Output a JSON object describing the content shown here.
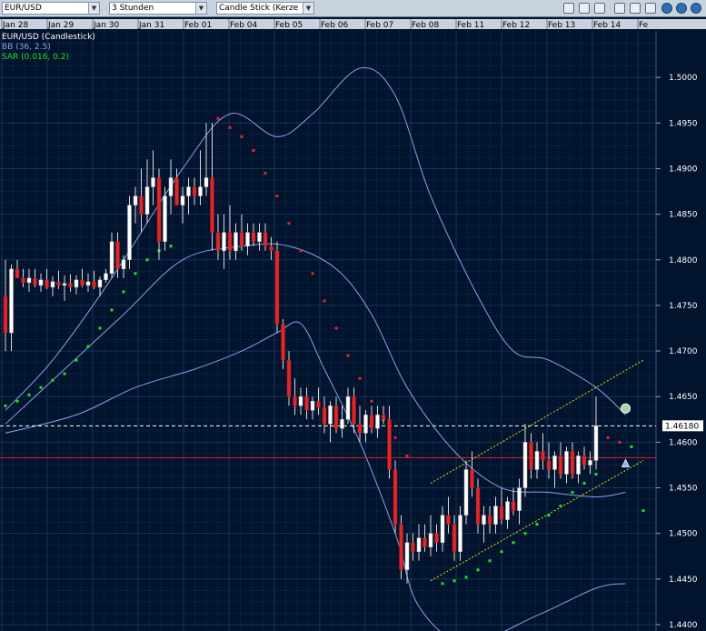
{
  "toolbar": {
    "symbol": "EUR/USD",
    "timeframe": "3 Stunden",
    "chart_type": "Candle Stick (Kerze"
  },
  "legend": {
    "main": "EUR/USD (Candlestick)",
    "bb": "BB (36, 2.5)",
    "sar": "SAR (0.016, 0.2)"
  },
  "colors": {
    "background": "#02132e",
    "grid": "#1a3356",
    "up_candle": "#ffffff",
    "down_candle": "#e0282c",
    "bollinger": "#8aa0e6",
    "sar_up": "#22e022",
    "sar_down": "#e0282c",
    "channel": "#e6e600",
    "support_line": "#d02626",
    "price_line": "#ffffff",
    "accent": "#a5d3a5"
  },
  "chart_data": {
    "type": "candlestick",
    "instrument": "EUR/USD",
    "timeframe": "3 Stunden",
    "x_tick_labels": [
      "Jan 28",
      "Jan 29",
      "Jan 30",
      "Jan 31",
      "Feb 01",
      "Feb 04",
      "Feb 05",
      "Feb 06",
      "Feb 07",
      "Feb 08",
      "Feb 11",
      "Feb 12",
      "Feb 13",
      "Feb 14",
      "Fe"
    ],
    "y_tick_labels": [
      "1.4400",
      "1.4450",
      "1.4500",
      "1.4550",
      "1.4600",
      "1.4650",
      "1.4700",
      "1.4750",
      "1.4800",
      "1.4850",
      "1.4900",
      "1.4950",
      "1.5000"
    ],
    "ylim": [
      1.4393,
      1.5051
    ],
    "grid": true,
    "current_price_label": "1.46180",
    "current_price": 1.4618,
    "support_level": 1.4583,
    "indicators": {
      "bollinger_bands": {
        "label": "BB (36, 2.5)",
        "period": 36,
        "deviation": 2.5
      },
      "parabolic_sar": {
        "label": "SAR (0.016, 0.2)",
        "step": 0.016,
        "max": 0.2
      }
    },
    "candles": [
      [
        1.476,
        1.48,
        1.47,
        1.472
      ],
      [
        1.472,
        1.4795,
        1.47,
        1.479
      ],
      [
        1.479,
        1.48,
        1.478,
        1.478
      ],
      [
        1.478,
        1.479,
        1.477,
        1.4775
      ],
      [
        1.4775,
        1.479,
        1.4765,
        1.478
      ],
      [
        1.478,
        1.479,
        1.477,
        1.4772
      ],
      [
        1.4772,
        1.4785,
        1.4765,
        1.4778
      ],
      [
        1.4778,
        1.479,
        1.4768,
        1.477
      ],
      [
        1.477,
        1.4782,
        1.476,
        1.4776
      ],
      [
        1.4776,
        1.4788,
        1.4768,
        1.4772
      ],
      [
        1.4772,
        1.4783,
        1.4755,
        1.4774
      ],
      [
        1.4774,
        1.4784,
        1.4765,
        1.477
      ],
      [
        1.477,
        1.4783,
        1.4762,
        1.4778
      ],
      [
        1.4778,
        1.479,
        1.477,
        1.4772
      ],
      [
        1.4772,
        1.4785,
        1.4765,
        1.4776
      ],
      [
        1.4776,
        1.4788,
        1.4768,
        1.477
      ],
      [
        1.477,
        1.4782,
        1.476,
        1.4778
      ],
      [
        1.4778,
        1.479,
        1.4775,
        1.4785
      ],
      [
        1.4785,
        1.483,
        1.478,
        1.482
      ],
      [
        1.482,
        1.483,
        1.478,
        1.479
      ],
      [
        1.479,
        1.4805,
        1.478,
        1.48
      ],
      [
        1.48,
        1.487,
        1.479,
        1.486
      ],
      [
        1.486,
        1.488,
        1.484,
        1.487
      ],
      [
        1.487,
        1.49,
        1.483,
        1.485
      ],
      [
        1.485,
        1.491,
        1.484,
        1.488
      ],
      [
        1.488,
        1.492,
        1.486,
        1.489
      ],
      [
        1.489,
        1.49,
        1.48,
        1.482
      ],
      [
        1.482,
        1.488,
        1.481,
        1.487
      ],
      [
        1.487,
        1.491,
        1.485,
        1.489
      ],
      [
        1.489,
        1.49,
        1.486,
        1.486
      ],
      [
        1.486,
        1.488,
        1.484,
        1.487
      ],
      [
        1.487,
        1.489,
        1.485,
        1.488
      ],
      [
        1.488,
        1.489,
        1.486,
        1.487
      ],
      [
        1.487,
        1.492,
        1.486,
        1.488
      ],
      [
        1.488,
        1.495,
        1.487,
        1.489
      ],
      [
        1.489,
        1.495,
        1.481,
        1.483
      ],
      [
        1.483,
        1.485,
        1.48,
        1.481
      ],
      [
        1.481,
        1.485,
        1.479,
        1.483
      ],
      [
        1.483,
        1.486,
        1.48,
        1.481
      ],
      [
        1.481,
        1.484,
        1.48,
        1.483
      ],
      [
        1.483,
        1.485,
        1.481,
        1.4815
      ],
      [
        1.4815,
        1.484,
        1.4805,
        1.483
      ],
      [
        1.483,
        1.484,
        1.4815,
        1.482
      ],
      [
        1.482,
        1.484,
        1.481,
        1.483
      ],
      [
        1.483,
        1.484,
        1.481,
        1.4815
      ],
      [
        1.4815,
        1.4825,
        1.48,
        1.481
      ],
      [
        1.481,
        1.482,
        1.472,
        1.473
      ],
      [
        1.473,
        1.4735,
        1.468,
        1.469
      ],
      [
        1.469,
        1.47,
        1.464,
        1.465
      ],
      [
        1.465,
        1.467,
        1.463,
        1.464
      ],
      [
        1.464,
        1.466,
        1.463,
        1.465
      ],
      [
        1.465,
        1.466,
        1.4625,
        1.4635
      ],
      [
        1.4635,
        1.465,
        1.4625,
        1.4645
      ],
      [
        1.4645,
        1.466,
        1.463,
        1.4638
      ],
      [
        1.4638,
        1.465,
        1.461,
        1.462
      ],
      [
        1.462,
        1.4645,
        1.46,
        1.464
      ],
      [
        1.464,
        1.465,
        1.461,
        1.4615
      ],
      [
        1.4615,
        1.464,
        1.4605,
        1.4625
      ],
      [
        1.4625,
        1.466,
        1.462,
        1.465
      ],
      [
        1.465,
        1.466,
        1.461,
        1.462
      ],
      [
        1.462,
        1.464,
        1.46,
        1.461
      ],
      [
        1.461,
        1.4635,
        1.46,
        1.463
      ],
      [
        1.463,
        1.464,
        1.461,
        1.4615
      ],
      [
        1.4615,
        1.464,
        1.4605,
        1.463
      ],
      [
        1.463,
        1.464,
        1.462,
        1.4625
      ],
      [
        1.4625,
        1.464,
        1.456,
        1.457
      ],
      [
        1.457,
        1.458,
        1.45,
        1.451
      ],
      [
        1.451,
        1.452,
        1.445,
        1.446
      ],
      [
        1.446,
        1.45,
        1.4445,
        1.449
      ],
      [
        1.449,
        1.45,
        1.447,
        1.448
      ],
      [
        1.448,
        1.451,
        1.447,
        1.4495
      ],
      [
        1.4495,
        1.451,
        1.448,
        1.4485
      ],
      [
        1.4485,
        1.452,
        1.4475,
        1.45
      ],
      [
        1.45,
        1.451,
        1.448,
        1.449
      ],
      [
        1.449,
        1.453,
        1.448,
        1.452
      ],
      [
        1.452,
        1.454,
        1.45,
        1.451
      ],
      [
        1.451,
        1.452,
        1.447,
        1.448
      ],
      [
        1.448,
        1.453,
        1.447,
        1.452
      ],
      [
        1.452,
        1.458,
        1.451,
        1.457
      ],
      [
        1.457,
        1.459,
        1.454,
        1.455
      ],
      [
        1.455,
        1.456,
        1.45,
        1.451
      ],
      [
        1.451,
        1.453,
        1.449,
        1.452
      ],
      [
        1.452,
        1.453,
        1.45,
        1.451
      ],
      [
        1.451,
        1.454,
        1.45,
        1.453
      ],
      [
        1.453,
        1.455,
        1.451,
        1.4515
      ],
      [
        1.4515,
        1.454,
        1.4505,
        1.4535
      ],
      [
        1.4535,
        1.455,
        1.452,
        1.4525
      ],
      [
        1.4525,
        1.456,
        1.451,
        1.455
      ],
      [
        1.455,
        1.462,
        1.454,
        1.46
      ],
      [
        1.46,
        1.461,
        1.456,
        1.457
      ],
      [
        1.457,
        1.46,
        1.456,
        1.459
      ],
      [
        1.459,
        1.461,
        1.457,
        1.458
      ],
      [
        1.458,
        1.46,
        1.456,
        1.457
      ],
      [
        1.457,
        1.459,
        1.455,
        1.4585
      ],
      [
        1.4585,
        1.46,
        1.456,
        1.4565
      ],
      [
        1.4565,
        1.4595,
        1.4555,
        1.459
      ],
      [
        1.459,
        1.46,
        1.456,
        1.4565
      ],
      [
        1.4565,
        1.459,
        1.4555,
        1.4585
      ],
      [
        1.4585,
        1.4595,
        1.457,
        1.4575
      ],
      [
        1.4575,
        1.459,
        1.4565,
        1.458
      ],
      [
        1.458,
        1.465,
        1.457,
        1.4618
      ]
    ],
    "bollinger_upper": [
      [
        0,
        1.4635
      ],
      [
        8,
        1.469
      ],
      [
        18,
        1.478
      ],
      [
        30,
        1.49
      ],
      [
        38,
        1.496
      ],
      [
        46,
        1.4935
      ],
      [
        52,
        1.496
      ],
      [
        60,
        1.501
      ],
      [
        66,
        1.498
      ],
      [
        72,
        1.487
      ],
      [
        80,
        1.476
      ],
      [
        86,
        1.47
      ],
      [
        92,
        1.469
      ],
      [
        100,
        1.466
      ],
      [
        105,
        1.463
      ]
    ],
    "bollinger_middle": [
      [
        0,
        1.462
      ],
      [
        10,
        1.468
      ],
      [
        20,
        1.474
      ],
      [
        30,
        1.48
      ],
      [
        40,
        1.4815
      ],
      [
        48,
        1.4815
      ],
      [
        56,
        1.479
      ],
      [
        62,
        1.474
      ],
      [
        68,
        1.466
      ],
      [
        76,
        1.459
      ],
      [
        84,
        1.455
      ],
      [
        92,
        1.4545
      ],
      [
        100,
        1.454
      ],
      [
        105,
        1.4545
      ]
    ],
    "bollinger_lower": [
      [
        0,
        1.461
      ],
      [
        12,
        1.463
      ],
      [
        22,
        1.466
      ],
      [
        32,
        1.468
      ],
      [
        40,
        1.47
      ],
      [
        46,
        1.472
      ],
      [
        50,
        1.473
      ],
      [
        54,
        1.468
      ],
      [
        60,
        1.46
      ],
      [
        66,
        1.45
      ],
      [
        70,
        1.442
      ],
      [
        78,
        1.438
      ],
      [
        90,
        1.441
      ],
      [
        100,
        1.444
      ],
      [
        105,
        1.4445
      ]
    ],
    "sar_points": [
      [
        0,
        1.464
      ],
      [
        2,
        1.4645
      ],
      [
        4,
        1.4652
      ],
      [
        6,
        1.466
      ],
      [
        8,
        1.4668
      ],
      [
        10,
        1.4675
      ],
      [
        12,
        1.469
      ],
      [
        14,
        1.4705
      ],
      [
        16,
        1.4725
      ],
      [
        18,
        1.4745
      ],
      [
        20,
        1.4765
      ],
      [
        22,
        1.4785
      ],
      [
        24,
        1.48
      ],
      [
        26,
        1.481
      ],
      [
        28,
        1.4815
      ],
      [
        36,
        1.4955
      ],
      [
        38,
        1.4945
      ],
      [
        40,
        1.4935
      ],
      [
        42,
        1.492
      ],
      [
        44,
        1.4895
      ],
      [
        46,
        1.487
      ],
      [
        48,
        1.484
      ],
      [
        50,
        1.481
      ],
      [
        52,
        1.4785
      ],
      [
        54,
        1.4755
      ],
      [
        56,
        1.4725
      ],
      [
        58,
        1.4695
      ],
      [
        60,
        1.467
      ],
      [
        62,
        1.4645
      ],
      [
        64,
        1.4625
      ],
      [
        66,
        1.4605
      ],
      [
        68,
        1.4585
      ],
      [
        74,
        1.4445
      ],
      [
        76,
        1.4448
      ],
      [
        78,
        1.4452
      ],
      [
        80,
        1.446
      ],
      [
        82,
        1.447
      ],
      [
        84,
        1.448
      ],
      [
        86,
        1.449
      ],
      [
        88,
        1.45
      ],
      [
        90,
        1.451
      ],
      [
        92,
        1.452
      ],
      [
        94,
        1.453
      ],
      [
        96,
        1.4545
      ],
      [
        98,
        1.4555
      ],
      [
        100,
        1.4565
      ],
      [
        102,
        1.4605
      ],
      [
        104,
        1.46
      ],
      [
        106,
        1.4595
      ],
      [
        108,
        1.4525
      ]
    ],
    "channel_upper": [
      [
        72,
        1.4555
      ],
      [
        108,
        1.469
      ]
    ],
    "channel_lower": [
      [
        72,
        1.4448
      ],
      [
        108,
        1.458
      ]
    ],
    "markers": [
      {
        "type": "circle",
        "index": 105,
        "price": 1.4637
      },
      {
        "type": "triangle",
        "index": 105,
        "price": 1.4577
      }
    ]
  }
}
